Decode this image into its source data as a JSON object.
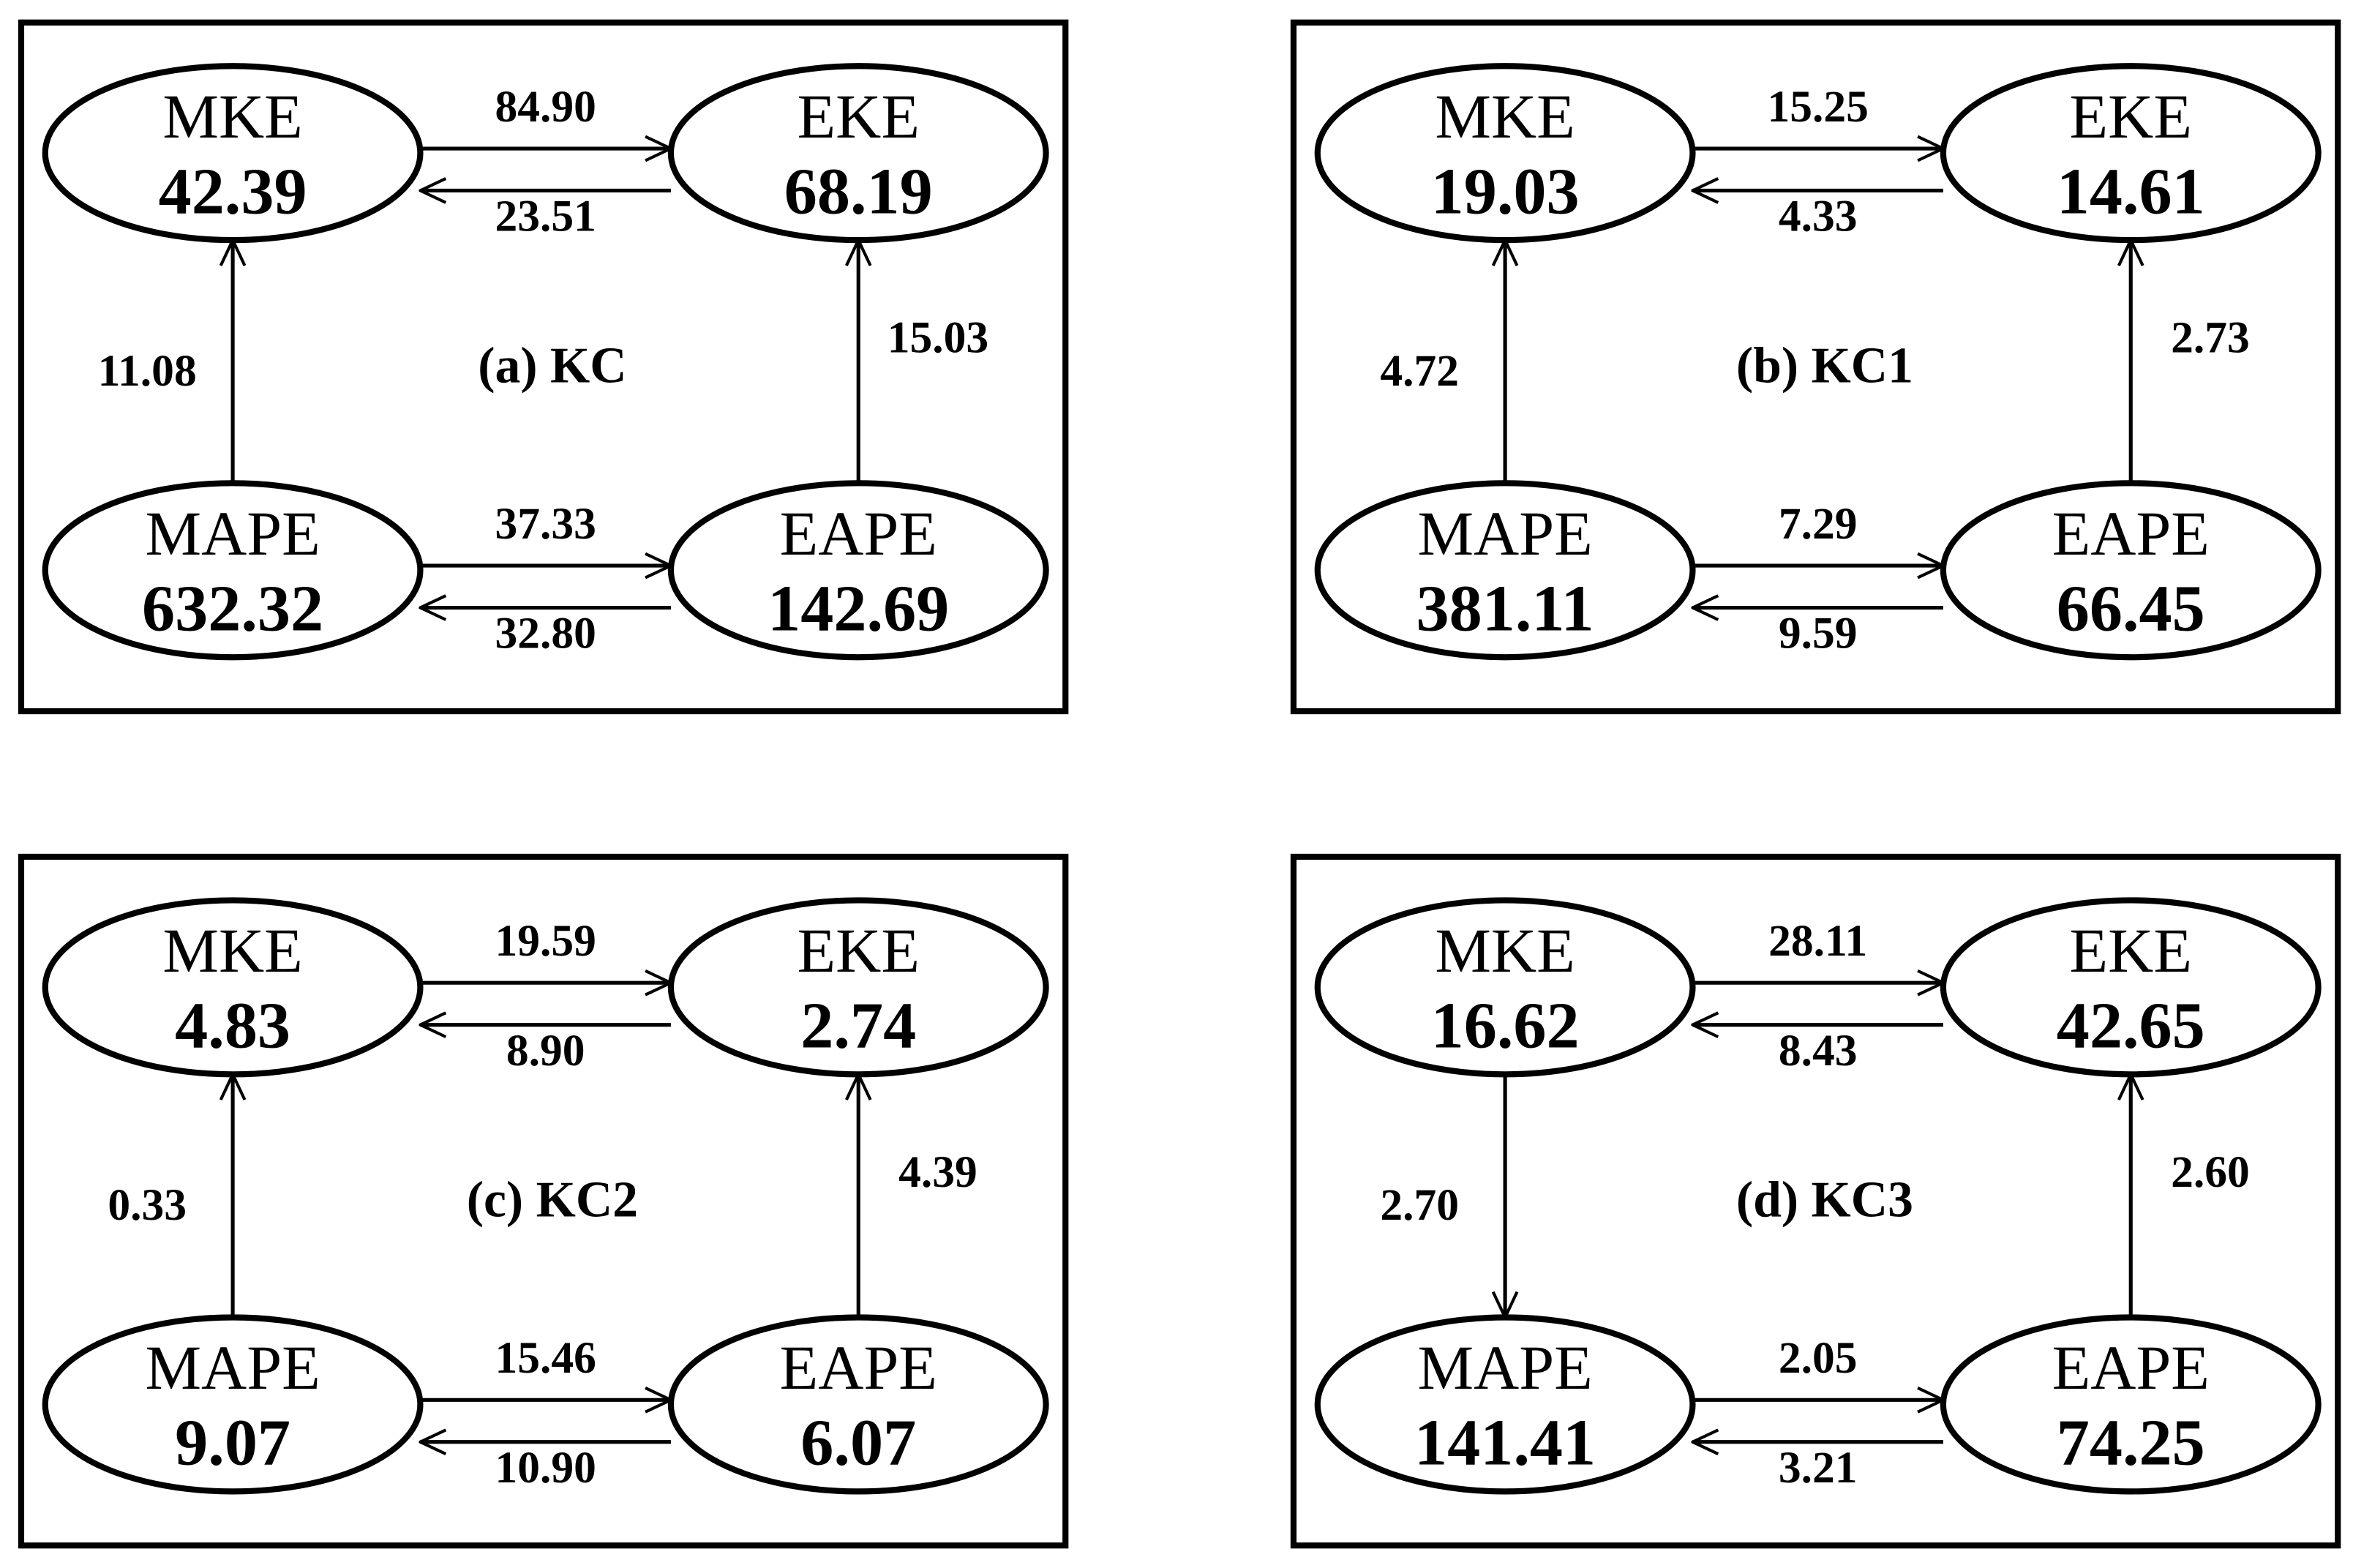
{
  "panels": [
    {
      "label": "(a) KC",
      "nodes": [
        {
          "name": "MKE",
          "value": "42.39"
        },
        {
          "name": "EKE",
          "value": "68.19"
        },
        {
          "name": "MAPE",
          "value": "632.32"
        },
        {
          "name": "EAPE",
          "value": "142.69"
        }
      ],
      "edges": [
        {
          "from": "MKE",
          "to": "EKE",
          "value": "84.90"
        },
        {
          "from": "EKE",
          "to": "MKE",
          "value": "23.51"
        },
        {
          "from": "MAPE",
          "to": "MKE",
          "value": "11.08"
        },
        {
          "from": "EAPE",
          "to": "EKE",
          "value": "15.03"
        },
        {
          "from": "MAPE",
          "to": "EAPE",
          "value": "37.33"
        },
        {
          "from": "EAPE",
          "to": "MAPE",
          "value": "32.80"
        }
      ]
    },
    {
      "label": "(b) KC1",
      "nodes": [
        {
          "name": "MKE",
          "value": "19.03"
        },
        {
          "name": "EKE",
          "value": "14.61"
        },
        {
          "name": "MAPE",
          "value": "381.11"
        },
        {
          "name": "EAPE",
          "value": "66.45"
        }
      ],
      "edges": [
        {
          "from": "MKE",
          "to": "EKE",
          "value": "15.25"
        },
        {
          "from": "EKE",
          "to": "MKE",
          "value": "4.33"
        },
        {
          "from": "MAPE",
          "to": "MKE",
          "value": "4.72"
        },
        {
          "from": "EAPE",
          "to": "EKE",
          "value": "2.73"
        },
        {
          "from": "MAPE",
          "to": "EAPE",
          "value": "7.29"
        },
        {
          "from": "EAPE",
          "to": "MAPE",
          "value": "9.59"
        }
      ]
    },
    {
      "label": "(c) KC2",
      "nodes": [
        {
          "name": "MKE",
          "value": "4.83"
        },
        {
          "name": "EKE",
          "value": "2.74"
        },
        {
          "name": "MAPE",
          "value": "9.07"
        },
        {
          "name": "EAPE",
          "value": "6.07"
        }
      ],
      "edges": [
        {
          "from": "MKE",
          "to": "EKE",
          "value": "19.59"
        },
        {
          "from": "EKE",
          "to": "MKE",
          "value": "8.90"
        },
        {
          "from": "MAPE",
          "to": "MKE",
          "value": "0.33"
        },
        {
          "from": "EAPE",
          "to": "EKE",
          "value": "4.39"
        },
        {
          "from": "MAPE",
          "to": "EAPE",
          "value": "15.46"
        },
        {
          "from": "EAPE",
          "to": "MAPE",
          "value": "10.90"
        }
      ]
    },
    {
      "label": "(d) KC3",
      "nodes": [
        {
          "name": "MKE",
          "value": "16.62"
        },
        {
          "name": "EKE",
          "value": "42.65"
        },
        {
          "name": "MAPE",
          "value": "141.41"
        },
        {
          "name": "EAPE",
          "value": "74.25"
        }
      ],
      "edges": [
        {
          "from": "MKE",
          "to": "EKE",
          "value": "28.11"
        },
        {
          "from": "EKE",
          "to": "MKE",
          "value": "8.43"
        },
        {
          "from": "MKE",
          "to": "MAPE",
          "value": "2.70"
        },
        {
          "from": "EAPE",
          "to": "EKE",
          "value": "2.60"
        },
        {
          "from": "MAPE",
          "to": "EAPE",
          "value": "2.05"
        },
        {
          "from": "EAPE",
          "to": "MAPE",
          "value": "3.21"
        }
      ]
    }
  ]
}
